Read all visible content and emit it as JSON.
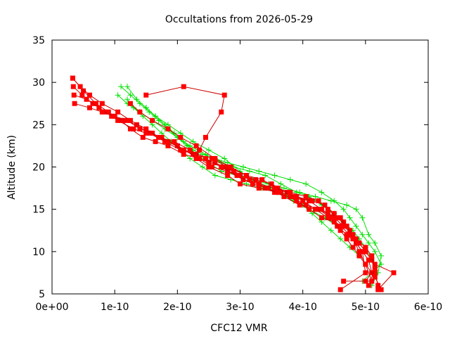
{
  "chart_data": {
    "type": "scatter",
    "title": "Occultations from 2026-05-29",
    "xlabel": "CFC12 VMR",
    "ylabel": "Altitude (km)",
    "xlim": [
      0,
      6e-10
    ],
    "ylim": [
      5,
      35
    ],
    "x_ticks": [
      0,
      1e-10,
      2e-10,
      3e-10,
      4e-10,
      5e-10,
      6e-10
    ],
    "x_tick_labels": [
      "0e+00",
      "1e-10",
      "2e-10",
      "3e-10",
      "4e-10",
      "5e-10",
      "6e-10"
    ],
    "y_ticks": [
      5,
      10,
      15,
      20,
      25,
      30,
      35
    ],
    "y_tick_labels": [
      "5",
      "10",
      "15",
      "20",
      "25",
      "30",
      "35"
    ],
    "grid": false,
    "legend": "none",
    "colors": {
      "red_series": "#ff0000",
      "red_line": "#cc0000",
      "green_series": "#00e000"
    },
    "series": [
      {
        "color": "red",
        "marker": "square",
        "x": [
          3.3e-11,
          5e-11,
          7e-11,
          9e-11,
          1.1e-10,
          1.25e-10,
          1.45e-10,
          1.65e-10,
          1.85e-10,
          2.1e-10,
          2.35e-10,
          2.55e-10,
          2.8e-10,
          3.05e-10,
          3.3e-10,
          3.55e-10,
          3.8e-10,
          4.05e-10,
          4.25e-10,
          4.45e-10,
          4.6e-10,
          4.75e-10,
          4.9e-10,
          5e-10,
          5.1e-10,
          5.15e-10,
          5.2e-10
        ],
        "y": [
          30.5,
          29.0,
          27.5,
          26.5,
          25.5,
          24.5,
          23.5,
          23.0,
          22.5,
          21.5,
          21.0,
          20.0,
          19.5,
          18.5,
          18.0,
          17.0,
          16.5,
          15.5,
          15.0,
          14.0,
          13.0,
          12.0,
          11.0,
          10.0,
          9.0,
          7.5,
          6.0
        ]
      },
      {
        "color": "red",
        "marker": "square",
        "x": [
          3.4e-11,
          4.8e-11,
          6.5e-11,
          8.5e-11,
          1.05e-10,
          1.3e-10,
          1.5e-10,
          1.75e-10,
          2e-10,
          2.25e-10,
          2.5e-10,
          2.75e-10,
          3e-10,
          3.25e-10,
          3.5e-10,
          3.75e-10,
          4e-10,
          4.2e-10,
          4.4e-10,
          4.55e-10,
          4.7e-10,
          4.85e-10,
          4.95e-10,
          5.05e-10,
          5.1e-10,
          5e-10
        ],
        "y": [
          29.5,
          28.5,
          27.5,
          26.5,
          25.5,
          24.5,
          24.0,
          23.5,
          22.5,
          21.5,
          20.5,
          20.0,
          19.0,
          18.5,
          18.0,
          17.0,
          16.0,
          15.0,
          14.0,
          13.0,
          12.0,
          11.0,
          10.0,
          9.0,
          7.5,
          6.5
        ]
      },
      {
        "color": "red",
        "marker": "square",
        "x": [
          3.5e-11,
          5.5e-11,
          7.5e-11,
          9.5e-11,
          1.15e-10,
          1.35e-10,
          1.55e-10,
          1.8e-10,
          2.05e-10,
          2.3e-10,
          2.55e-10,
          2.8e-10,
          3.1e-10,
          3.35e-10,
          3.6e-10,
          3.85e-10,
          4.1e-10,
          4.3e-10,
          4.5e-10,
          4.65e-10,
          4.8e-10,
          4.9e-10,
          5e-10,
          5.15e-10,
          5.45e-10,
          5.2e-10
        ],
        "y": [
          28.5,
          28.0,
          27.0,
          26.0,
          25.5,
          25.0,
          24.0,
          23.0,
          22.0,
          21.5,
          21.0,
          20.0,
          19.0,
          18.5,
          17.5,
          16.5,
          16.0,
          15.0,
          14.0,
          13.0,
          12.0,
          11.0,
          10.0,
          8.5,
          7.5,
          5.5
        ]
      },
      {
        "color": "red",
        "marker": "square",
        "x": [
          3.6e-11,
          6e-11,
          8e-11,
          1e-10,
          1.2e-10,
          1.4e-10,
          1.6e-10,
          1.85e-10,
          2.1e-10,
          2.35e-10,
          2.6e-10,
          2.9e-10,
          3.15e-10,
          3.4e-10,
          3.65e-10,
          3.9e-10,
          4.15e-10,
          4.35e-10,
          4.5e-10,
          4.65e-10,
          4.75e-10,
          4.85e-10,
          5e-10,
          5.1e-10,
          5.15e-10,
          5.05e-10
        ],
        "y": [
          27.5,
          27.0,
          26.5,
          26.0,
          25.5,
          24.5,
          24.0,
          23.0,
          22.0,
          21.0,
          20.5,
          19.5,
          18.5,
          17.5,
          17.0,
          16.5,
          16.0,
          15.5,
          14.5,
          13.5,
          12.5,
          11.5,
          10.5,
          9.5,
          8.0,
          6.0
        ]
      },
      {
        "color": "red",
        "marker": "square",
        "x": [
          3.3e-11,
          4.5e-11,
          6e-11,
          8e-11,
          1.05e-10,
          1.25e-10,
          1.5e-10,
          1.7e-10,
          1.95e-10,
          2.2e-10,
          2.45e-10,
          2.7e-10,
          2.95e-10,
          3.2e-10,
          3.45e-10,
          3.7e-10,
          3.95e-10,
          4.2e-10,
          4.4e-10,
          4.6e-10,
          4.7e-10,
          4.8e-10,
          4.85e-10,
          4.95e-10,
          5e-10,
          4.6e-10
        ],
        "y": [
          30.5,
          29.5,
          28.5,
          27.5,
          26.5,
          25.5,
          24.5,
          23.5,
          23.0,
          22.0,
          21.0,
          20.0,
          19.0,
          18.0,
          17.5,
          16.5,
          15.5,
          15.0,
          14.5,
          14.0,
          13.0,
          12.0,
          11.0,
          10.0,
          7.5,
          5.5
        ]
      },
      {
        "color": "red",
        "marker": "square",
        "x": [
          1.5e-10,
          2.1e-10,
          2.75e-10,
          2.7e-10,
          2.45e-10,
          2.35e-10,
          2.3e-10,
          2.5e-10,
          2.8e-10,
          3e-10,
          3.3e-10,
          3.6e-10,
          3.9e-10,
          4.1e-10,
          4.3e-10,
          4.5e-10,
          4.6e-10,
          4.7e-10,
          4.8e-10,
          4.9e-10,
          5e-10,
          5.1e-10,
          4.65e-10
        ],
        "y": [
          28.5,
          29.5,
          28.5,
          26.5,
          23.5,
          22.0,
          21.0,
          20.0,
          19.0,
          18.0,
          17.5,
          17.0,
          16.0,
          15.0,
          14.0,
          13.5,
          12.5,
          11.5,
          10.5,
          9.5,
          8.5,
          6.5,
          6.5
        ]
      },
      {
        "color": "red",
        "marker": "square",
        "x": [
          1.25e-10,
          1.4e-10,
          1.6e-10,
          1.85e-10,
          2.05e-10,
          2.3e-10,
          2.6e-10,
          2.85e-10,
          3.1e-10,
          3.3e-10,
          3.55e-10,
          3.8e-10,
          4.05e-10,
          4.25e-10,
          4.4e-10,
          4.55e-10,
          4.7e-10,
          4.8e-10,
          4.9e-10,
          5e-10,
          5.15e-10,
          5.25e-10
        ],
        "y": [
          27.5,
          26.5,
          25.5,
          24.5,
          23.5,
          22.5,
          21.0,
          20.0,
          19.0,
          18.0,
          17.5,
          17.0,
          16.5,
          16.0,
          15.0,
          14.0,
          13.0,
          11.5,
          10.0,
          8.5,
          7.0,
          5.5
        ]
      },
      {
        "color": "green",
        "marker": "plus",
        "x": [
          1.1e-10,
          1.25e-10,
          1.4e-10,
          1.55e-10,
          1.7e-10,
          1.85e-10,
          2e-10,
          2.15e-10,
          2.3e-10,
          2.5e-10,
          2.7e-10,
          2.95e-10,
          3.2e-10,
          3.45e-10,
          3.7e-10,
          3.95e-10,
          4.2e-10,
          4.45e-10,
          4.7e-10,
          4.85e-10,
          4.95e-10,
          5.05e-10,
          5.15e-10,
          5.25e-10,
          5.2e-10,
          5.1e-10
        ],
        "y": [
          29.5,
          28.5,
          27.5,
          26.5,
          25.5,
          24.5,
          23.5,
          22.5,
          21.5,
          20.5,
          19.5,
          19.0,
          18.5,
          18.0,
          17.5,
          17.0,
          16.5,
          16.0,
          15.5,
          15.0,
          14.0,
          12.0,
          11.0,
          9.5,
          7.5,
          6.0
        ]
      },
      {
        "color": "green",
        "marker": "plus",
        "x": [
          1.2e-10,
          1.35e-10,
          1.5e-10,
          1.65e-10,
          1.8e-10,
          1.95e-10,
          2.1e-10,
          2.25e-10,
          2.4e-10,
          2.6e-10,
          2.8e-10,
          3.05e-10,
          3.3e-10,
          3.55e-10,
          3.8e-10,
          4.05e-10,
          4.3e-10,
          4.5e-10,
          4.65e-10,
          4.75e-10,
          4.85e-10,
          4.95e-10,
          5.05e-10,
          5.15e-10,
          5.25e-10,
          4.95e-10
        ],
        "y": [
          29.5,
          28.0,
          27.0,
          26.0,
          25.0,
          24.0,
          23.0,
          22.0,
          21.5,
          21.0,
          20.5,
          20.0,
          19.5,
          19.0,
          18.5,
          18.0,
          17.0,
          16.0,
          15.0,
          14.0,
          13.0,
          12.0,
          11.0,
          10.0,
          8.5,
          6.5
        ]
      },
      {
        "color": "green",
        "marker": "plus",
        "x": [
          1.05e-10,
          1.2e-10,
          1.4e-10,
          1.6e-10,
          1.8e-10,
          2e-10,
          2.2e-10,
          2.45e-10,
          2.7e-10,
          2.9e-10,
          3.15e-10,
          3.4e-10,
          3.65e-10,
          3.9e-10,
          4.1e-10,
          4.3e-10,
          4.5e-10,
          4.65e-10,
          4.8e-10,
          4.9e-10,
          5e-10,
          5.1e-10
        ],
        "y": [
          28.5,
          27.5,
          26.5,
          25.5,
          24.5,
          23.5,
          22.5,
          21.5,
          20.5,
          20.0,
          19.5,
          19.0,
          18.0,
          17.0,
          16.5,
          15.5,
          14.5,
          13.5,
          12.5,
          11.5,
          10.5,
          9.0
        ]
      },
      {
        "color": "green",
        "marker": "plus",
        "x": [
          1.5e-10,
          1.65e-10,
          1.85e-10,
          2.05e-10,
          2.25e-10,
          2.5e-10,
          2.75e-10,
          3e-10,
          3.2e-10,
          3.5e-10,
          3.8e-10,
          4e-10,
          4.15e-10,
          4.3e-10,
          4.45e-10,
          4.6e-10,
          4.75e-10,
          4.9e-10
        ],
        "y": [
          27.0,
          26.0,
          25.0,
          24.0,
          23.0,
          22.0,
          21.0,
          19.5,
          18.5,
          17.5,
          16.5,
          15.5,
          14.5,
          13.5,
          12.5,
          11.5,
          10.5,
          9.5
        ]
      },
      {
        "color": "green",
        "marker": "plus",
        "x": [
          1.2e-10,
          1.3e-10,
          1.45e-10,
          1.6e-10,
          1.75e-10,
          1.9e-10,
          2.05e-10,
          2.2e-10,
          2.4e-10,
          2.6e-10,
          2.85e-10,
          3.1e-10,
          3.35e-10,
          3.6e-10,
          3.85e-10,
          4.1e-10,
          4.35e-10,
          4.55e-10,
          4.7e-10
        ],
        "y": [
          28.0,
          27.0,
          26.0,
          25.0,
          24.0,
          23.0,
          22.0,
          21.0,
          20.0,
          19.0,
          18.5,
          18.0,
          17.5,
          17.0,
          16.0,
          15.0,
          14.0,
          13.0,
          12.0
        ]
      }
    ]
  }
}
